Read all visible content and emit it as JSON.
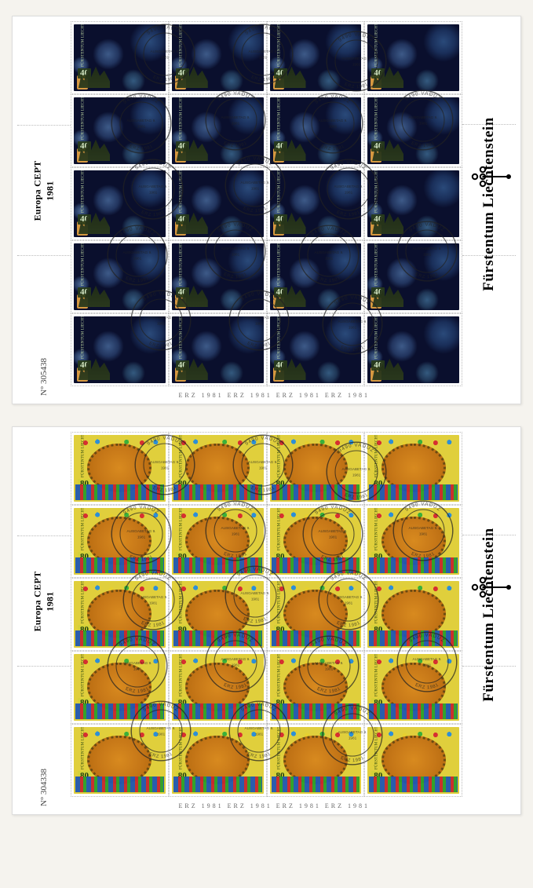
{
  "common": {
    "country": "Fürstentum Liechtenstein",
    "europa": "Europa CEPT",
    "year": "1981",
    "stamp_country_vertical": "FÜRSTENTUM LIECHTENSTEIN",
    "grid_cols": 4,
    "grid_rows": 5
  },
  "sheets": [
    {
      "value": "40",
      "sheet_number": "N° 305438",
      "art": "fireworks",
      "stamp_bg": "#0a0f2d",
      "postmark_text_top": "9490 VADUZ",
      "postmark_text_bottom": "ERZ 1981",
      "postmark_center": "AUSGABETAG 9.",
      "bottom_marks": "ERZ 1981   ERZ 1981   ERZ 1981   ERZ 1981"
    },
    {
      "value": "80",
      "sheet_number": "N° 304338",
      "art": "folk",
      "stamp_bg": "#e0cf3c",
      "postmark_text_top": "9490 VADUZ",
      "postmark_text_bottom": "ERZ 1981",
      "postmark_center": "AUSGABETAG 9.",
      "bottom_marks": "ERZ 1981   ERZ 1981   ERZ 1981   ERZ 1981"
    }
  ],
  "colors": {
    "page_bg": "#f5f3ee",
    "sheet_bg": "#ffffff",
    "text": "#000000",
    "postmark": "#222222"
  },
  "postmark_positions_pct": [
    [
      24,
      9
    ],
    [
      49,
      9
    ],
    [
      73,
      11
    ],
    [
      18,
      28
    ],
    [
      42,
      27
    ],
    [
      67,
      28
    ],
    [
      90,
      27
    ],
    [
      21,
      46
    ],
    [
      47,
      45
    ],
    [
      71,
      46
    ],
    [
      17,
      64
    ],
    [
      42,
      63
    ],
    [
      66,
      64
    ],
    [
      91,
      63
    ],
    [
      23,
      82
    ],
    [
      48,
      82
    ],
    [
      72,
      83
    ]
  ]
}
